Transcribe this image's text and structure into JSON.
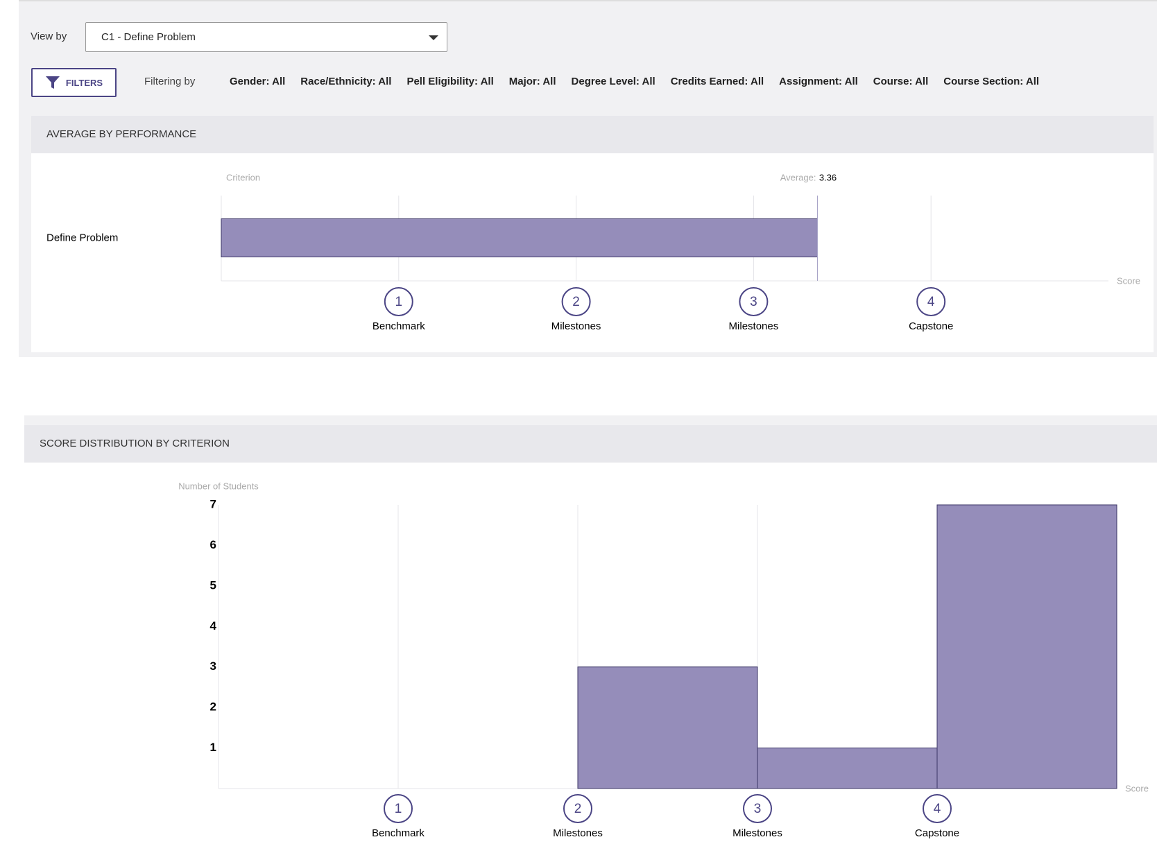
{
  "view_by": {
    "label": "View by",
    "selected": "C1 - Define Problem"
  },
  "filters": {
    "button": "FILTERS",
    "label": "Filtering by",
    "items": [
      "Gender: All",
      "Race/Ethnicity: All",
      "Pell Eligibility: All",
      "Major: All",
      "Degree Level: All",
      "Credits Earned: All",
      "Assignment: All",
      "Course: All",
      "Course Section: All"
    ]
  },
  "chart_data": [
    {
      "type": "bar",
      "horizontal": true,
      "title": "AVERAGE BY PERFORMANCE",
      "y_label": "Criterion",
      "x_label": "Score",
      "annotation": "Average:",
      "categories": [
        "Define Problem"
      ],
      "values": [
        3.36
      ],
      "color": "#958dba",
      "xlim": [
        0,
        5
      ],
      "xticks": [
        1,
        2,
        3,
        4
      ],
      "tick_names": [
        "Benchmark",
        "Milestones",
        "Milestones",
        "Capstone"
      ],
      "grid": true
    },
    {
      "type": "histogram",
      "title": "SCORE DISTRIBUTION BY CRITERION",
      "y_label": "Number of Students",
      "x_label": "Score",
      "bins": [
        0,
        1,
        2,
        3,
        4,
        5
      ],
      "values": [
        0,
        0,
        3,
        1,
        7
      ],
      "color": "#958dba",
      "xlim": [
        0,
        5
      ],
      "xticks": [
        1,
        2,
        3,
        4
      ],
      "tick_names": [
        "Benchmark",
        "Milestones",
        "Milestones",
        "Capstone"
      ],
      "ylim": [
        0,
        7
      ],
      "yticks": [
        1,
        2,
        3,
        4,
        5,
        6,
        7
      ],
      "grid": true
    }
  ]
}
